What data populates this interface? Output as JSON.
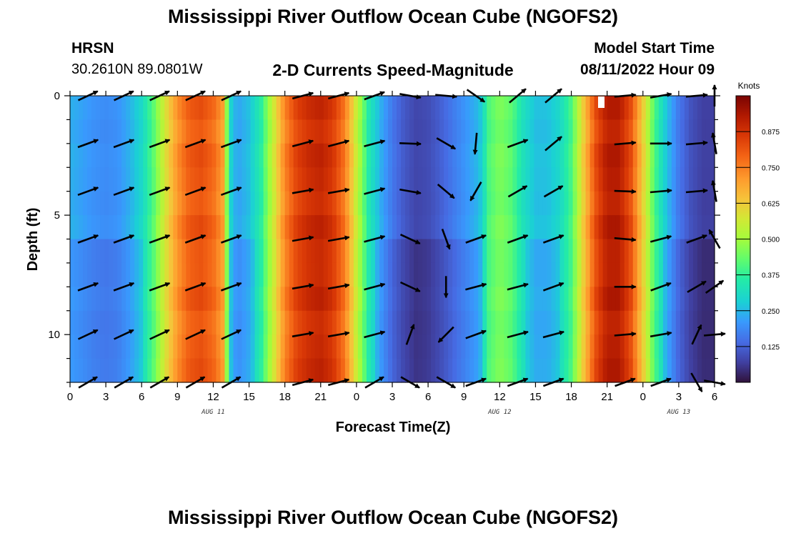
{
  "titles": {
    "main": "Mississippi River Outflow Ocean Cube (NGOFS2)",
    "second": "Mississippi River Outflow Ocean Cube (NGOFS2)"
  },
  "header": {
    "station": "HRSN",
    "coords": "30.2610N  89.0801W",
    "plot_title": "2-D Currents Speed-Magnitude",
    "model_label": "Model Start Time",
    "model_time": "08/11/2022 Hour 09"
  },
  "colorbar": {
    "unit": "Knots",
    "colormap": "turbo",
    "range": [
      0,
      1.0
    ]
  },
  "chart_data": {
    "type": "heatmap",
    "title": "2-D Currents Speed-Magnitude",
    "xlabel": "Forecast Time(Z)",
    "ylabel": "Depth (ft)",
    "x_ticks": [
      "0",
      "3",
      "6",
      "9",
      "12",
      "15",
      "18",
      "21",
      "0",
      "3",
      "6",
      "9",
      "12",
      "15",
      "18",
      "21",
      "0",
      "3",
      "6"
    ],
    "x_range_hours": [
      0,
      54
    ],
    "y_ticks": [
      0,
      5,
      10
    ],
    "ylim": [
      0,
      12
    ],
    "y_inverted": true,
    "date_labels": [
      {
        "text": "AUG 11",
        "hour": 12
      },
      {
        "text": "AUG 12",
        "hour": 36
      },
      {
        "text": "AUG 13",
        "hour": 51
      }
    ],
    "colorbar_ticks": [
      "0.125",
      "0.250",
      "0.375",
      "0.500",
      "0.625",
      "0.750",
      "0.875"
    ],
    "speed_profile": {
      "hours": [
        0,
        1,
        2,
        3,
        4,
        5,
        6,
        7,
        8,
        9,
        10,
        11,
        12,
        12.8,
        13.4,
        14,
        15,
        16,
        17,
        18,
        19,
        20,
        21,
        22,
        23,
        24,
        25,
        26,
        27,
        28,
        29,
        30,
        31,
        32,
        33,
        34,
        34.5,
        35,
        36,
        37,
        38,
        39,
        40,
        41,
        42,
        43,
        44,
        45,
        46,
        47,
        48,
        49,
        50,
        51,
        52,
        53,
        54
      ],
      "knots": [
        0.24,
        0.22,
        0.2,
        0.19,
        0.2,
        0.24,
        0.3,
        0.42,
        0.58,
        0.72,
        0.8,
        0.82,
        0.78,
        0.7,
        0.3,
        0.22,
        0.26,
        0.36,
        0.55,
        0.74,
        0.84,
        0.88,
        0.9,
        0.86,
        0.76,
        0.55,
        0.35,
        0.24,
        0.16,
        0.11,
        0.08,
        0.09,
        0.12,
        0.16,
        0.2,
        0.24,
        0.28,
        0.4,
        0.46,
        0.42,
        0.32,
        0.26,
        0.26,
        0.3,
        0.4,
        0.62,
        0.82,
        0.92,
        0.92,
        0.82,
        0.62,
        0.4,
        0.26,
        0.16,
        0.1,
        0.07,
        0.07
      ]
    },
    "vectors": {
      "hours": [
        1.5,
        4.5,
        7.5,
        10.5,
        13.5,
        19.5,
        22.5,
        25.5,
        28.5,
        31.5,
        34.0,
        37.5,
        40.5,
        46.5,
        49.5,
        52.5,
        54
      ],
      "depths": [
        0,
        2,
        4,
        6,
        8,
        10,
        12
      ],
      "angles_deg": [
        [
          -25,
          -25,
          -25,
          -25,
          -25,
          -15,
          -15,
          -20,
          10,
          5,
          35,
          -40,
          -40,
          -5,
          -10,
          -5,
          -90
        ],
        [
          -20,
          -20,
          -20,
          -20,
          -20,
          -15,
          -15,
          -15,
          2,
          30,
          95,
          -20,
          -40,
          -5,
          0,
          -5,
          -100
        ],
        [
          -20,
          -20,
          -20,
          -20,
          -20,
          -10,
          -10,
          -15,
          10,
          40,
          120,
          -30,
          -30,
          2,
          -5,
          -5,
          -100
        ],
        [
          -20,
          -20,
          -20,
          -20,
          -20,
          -10,
          -10,
          -15,
          25,
          70,
          -20,
          -20,
          -20,
          5,
          -15,
          -20,
          -120
        ],
        [
          -20,
          -20,
          -20,
          -20,
          -20,
          -10,
          -10,
          -15,
          25,
          90,
          -15,
          -15,
          -20,
          0,
          -20,
          -30,
          -35
        ],
        [
          -25,
          -25,
          -25,
          -25,
          -25,
          -10,
          -10,
          -15,
          -70,
          135,
          -20,
          -15,
          -15,
          -5,
          -10,
          -65,
          -5
        ],
        [
          -30,
          -30,
          -30,
          -30,
          -30,
          -15,
          -15,
          -30,
          30,
          30,
          -20,
          -20,
          -20,
          -20,
          -20,
          60,
          10
        ]
      ]
    }
  }
}
